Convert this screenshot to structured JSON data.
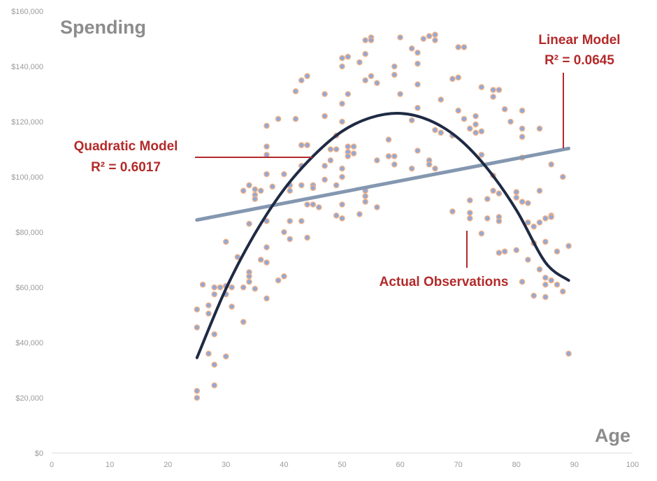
{
  "chart_data": {
    "type": "scatter",
    "title": "",
    "xlabel": "Age",
    "ylabel": "Spending",
    "xlim": [
      0,
      100
    ],
    "ylim": [
      0,
      160000
    ],
    "x_ticks": [
      0,
      10,
      20,
      30,
      40,
      50,
      60,
      70,
      80,
      90,
      100
    ],
    "y_ticks": [
      "$0",
      "$20,000",
      "$40,000",
      "$60,000",
      "$80,000",
      "$100,000",
      "$120,000",
      "$140,000",
      "$160,000"
    ],
    "y_tick_values": [
      0,
      20000,
      40000,
      60000,
      80000,
      100000,
      120000,
      140000,
      160000
    ],
    "grid": false,
    "colors": {
      "points_fill": "#8ea9db",
      "points_edge": "#f4b183",
      "linear": "#8497b0",
      "quadratic": "#1f2a44",
      "annotation": "#b32a2a",
      "axis_title": "#8c8c8c",
      "tick": "#9b9b9b"
    },
    "series": [
      {
        "name": "Actual Observations",
        "kind": "points",
        "points": [
          [
            25,
            52000
          ],
          [
            25,
            45500
          ],
          [
            25,
            22500
          ],
          [
            25,
            20000
          ],
          [
            26,
            61000
          ],
          [
            27,
            53500
          ],
          [
            27,
            50500
          ],
          [
            27,
            36000
          ],
          [
            28,
            60000
          ],
          [
            28,
            57500
          ],
          [
            28,
            43000
          ],
          [
            28,
            32000
          ],
          [
            28,
            24500
          ],
          [
            29,
            60000
          ],
          [
            30,
            76500
          ],
          [
            30,
            60500
          ],
          [
            30,
            57500
          ],
          [
            30,
            35000
          ],
          [
            31,
            60000
          ],
          [
            31,
            53000
          ],
          [
            32,
            71000
          ],
          [
            33,
            95000
          ],
          [
            33,
            60000
          ],
          [
            33,
            47500
          ],
          [
            34,
            97000
          ],
          [
            34,
            83000
          ],
          [
            34,
            65500
          ],
          [
            34,
            64000
          ],
          [
            34,
            62000
          ],
          [
            35,
            95500
          ],
          [
            35,
            93500
          ],
          [
            35,
            92000
          ],
          [
            35,
            59500
          ],
          [
            36,
            95000
          ],
          [
            36,
            70000
          ],
          [
            37,
            118500
          ],
          [
            37,
            111000
          ],
          [
            37,
            108000
          ],
          [
            37,
            101000
          ],
          [
            37,
            84000
          ],
          [
            37,
            74500
          ],
          [
            37,
            69000
          ],
          [
            37,
            56000
          ],
          [
            38,
            96500
          ],
          [
            39,
            121000
          ],
          [
            39,
            62500
          ],
          [
            40,
            101000
          ],
          [
            40,
            80000
          ],
          [
            40,
            64000
          ],
          [
            41,
            97000
          ],
          [
            41,
            95000
          ],
          [
            41,
            84000
          ],
          [
            41,
            77500
          ],
          [
            42,
            131000
          ],
          [
            42,
            121000
          ],
          [
            43,
            135000
          ],
          [
            43,
            111500
          ],
          [
            43,
            104000
          ],
          [
            43,
            97000
          ],
          [
            43,
            84000
          ],
          [
            44,
            136500
          ],
          [
            44,
            111500
          ],
          [
            44,
            90000
          ],
          [
            44,
            78000
          ],
          [
            45,
            97000
          ],
          [
            45,
            96000
          ],
          [
            45,
            90000
          ],
          [
            46,
            89000
          ],
          [
            47,
            130000
          ],
          [
            47,
            122000
          ],
          [
            47,
            104000
          ],
          [
            47,
            99000
          ],
          [
            48,
            110000
          ],
          [
            48,
            106000
          ],
          [
            49,
            115000
          ],
          [
            49,
            110000
          ],
          [
            49,
            97000
          ],
          [
            49,
            86000
          ],
          [
            50,
            143000
          ],
          [
            50,
            140000
          ],
          [
            50,
            126500
          ],
          [
            50,
            120000
          ],
          [
            50,
            103000
          ],
          [
            50,
            100000
          ],
          [
            50,
            90000
          ],
          [
            50,
            85000
          ],
          [
            51,
            143500
          ],
          [
            51,
            130000
          ],
          [
            51,
            111000
          ],
          [
            51,
            109000
          ],
          [
            51,
            107500
          ],
          [
            52,
            111000
          ],
          [
            52,
            108500
          ],
          [
            53,
            141500
          ],
          [
            53,
            86500
          ],
          [
            54,
            149500
          ],
          [
            54,
            144500
          ],
          [
            54,
            135000
          ],
          [
            54,
            95000
          ],
          [
            54,
            93000
          ],
          [
            54,
            91000
          ],
          [
            55,
            150500
          ],
          [
            55,
            149500
          ],
          [
            55,
            136500
          ],
          [
            56,
            134000
          ],
          [
            56,
            106000
          ],
          [
            56,
            89000
          ],
          [
            58,
            113500
          ],
          [
            58,
            107500
          ],
          [
            59,
            140000
          ],
          [
            59,
            137000
          ],
          [
            59,
            107500
          ],
          [
            59,
            104500
          ],
          [
            60,
            150500
          ],
          [
            60,
            130000
          ],
          [
            62,
            146500
          ],
          [
            62,
            120500
          ],
          [
            62,
            103000
          ],
          [
            63,
            145000
          ],
          [
            63,
            141000
          ],
          [
            63,
            133500
          ],
          [
            63,
            125000
          ],
          [
            63,
            109500
          ],
          [
            64,
            150000
          ],
          [
            65,
            151000
          ],
          [
            65,
            106000
          ],
          [
            65,
            104500
          ],
          [
            66,
            151500
          ],
          [
            66,
            149500
          ],
          [
            66,
            117000
          ],
          [
            66,
            103000
          ],
          [
            67,
            128000
          ],
          [
            67,
            116000
          ],
          [
            69,
            135500
          ],
          [
            69,
            115000
          ],
          [
            69,
            87500
          ],
          [
            70,
            147000
          ],
          [
            70,
            136000
          ],
          [
            70,
            124000
          ],
          [
            71,
            147000
          ],
          [
            71,
            121000
          ],
          [
            72,
            117500
          ],
          [
            72,
            91500
          ],
          [
            72,
            87000
          ],
          [
            72,
            85000
          ],
          [
            73,
            122000
          ],
          [
            73,
            119000
          ],
          [
            73,
            116000
          ],
          [
            74,
            132500
          ],
          [
            74,
            116500
          ],
          [
            74,
            108000
          ],
          [
            74,
            79500
          ],
          [
            75,
            92000
          ],
          [
            75,
            85000
          ],
          [
            76,
            131500
          ],
          [
            76,
            129000
          ],
          [
            76,
            100500
          ],
          [
            76,
            95000
          ],
          [
            77,
            131500
          ],
          [
            77,
            94000
          ],
          [
            77,
            85500
          ],
          [
            77,
            84000
          ],
          [
            77,
            72500
          ],
          [
            78,
            124500
          ],
          [
            78,
            73000
          ],
          [
            79,
            120000
          ],
          [
            80,
            94500
          ],
          [
            80,
            92500
          ],
          [
            80,
            73500
          ],
          [
            81,
            124000
          ],
          [
            81,
            117500
          ],
          [
            81,
            114500
          ],
          [
            81,
            107000
          ],
          [
            81,
            91000
          ],
          [
            81,
            62000
          ],
          [
            82,
            90500
          ],
          [
            82,
            83500
          ],
          [
            82,
            70000
          ],
          [
            83,
            76000
          ],
          [
            83,
            57000
          ],
          [
            84,
            117500
          ],
          [
            84,
            95000
          ],
          [
            84,
            83500
          ],
          [
            84,
            66500
          ],
          [
            85,
            85000
          ],
          [
            85,
            76500
          ],
          [
            85,
            63500
          ],
          [
            85,
            56500
          ],
          [
            86,
            104500
          ],
          [
            86,
            86000
          ],
          [
            86,
            85500
          ],
          [
            86,
            62500
          ],
          [
            87,
            73000
          ],
          [
            87,
            61000
          ],
          [
            88,
            100000
          ],
          [
            88,
            58500
          ],
          [
            89,
            75000
          ],
          [
            89,
            36000
          ],
          [
            85,
            61000
          ],
          [
            83,
            82000
          ]
        ]
      },
      {
        "name": "Linear Model",
        "kind": "line",
        "x": [
          25,
          89
        ],
        "values": [
          84400,
          110300
        ]
      },
      {
        "name": "Quadratic Model",
        "kind": "curve",
        "x": [
          25,
          30,
          35,
          40,
          45,
          50,
          55,
          60,
          65,
          70,
          75,
          80,
          85,
          89
        ],
        "values": [
          34500,
          59500,
          79500,
          95500,
          107500,
          116500,
          121500,
          123000,
          120500,
          114000,
          103000,
          88000,
          69000,
          62500
        ]
      }
    ],
    "annotations": [
      {
        "text": "Spending",
        "role": "y-axis-title"
      },
      {
        "text": "Age",
        "role": "x-axis-title"
      },
      {
        "text": "Linear Model",
        "second_line": "R² = 0.0645"
      },
      {
        "text": "Quadratic Model",
        "second_line": "R² = 0.6017"
      },
      {
        "text": "Actual Observations"
      }
    ]
  }
}
